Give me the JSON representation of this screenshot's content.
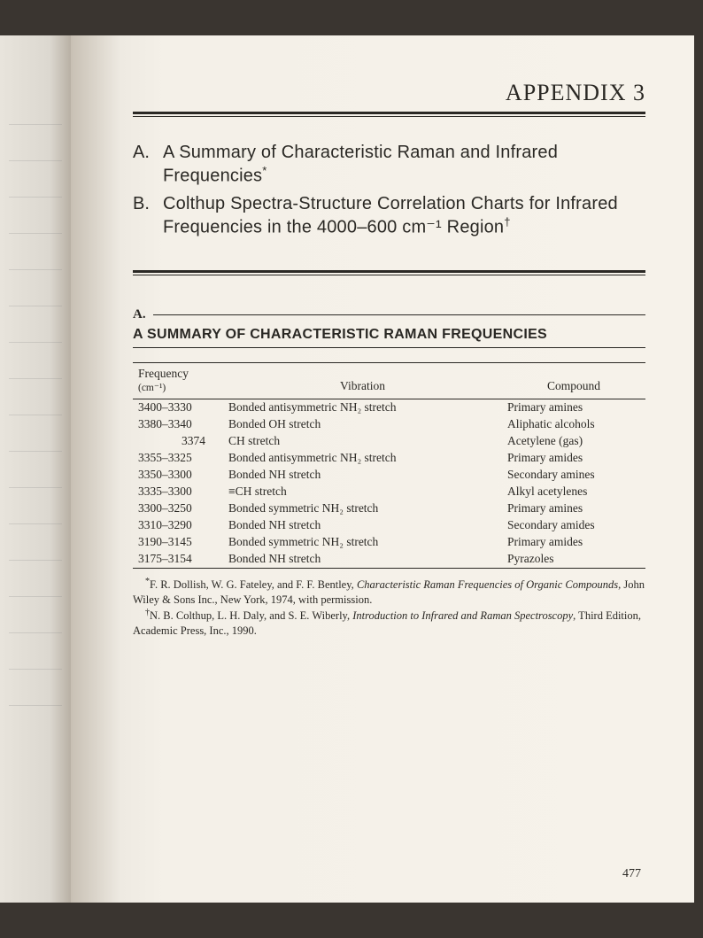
{
  "appendix_label": "APPENDIX 3",
  "toc": [
    {
      "letter": "A.",
      "text": "A Summary of Characteristic Raman and Infrared Frequencies",
      "mark": "*"
    },
    {
      "letter": "B.",
      "text": "Colthup Spectra-Structure Correlation Charts for Infrared Frequencies in the 4000–600 cm⁻¹ Region",
      "mark": "†"
    }
  ],
  "section": {
    "marker": "A.",
    "title": "A SUMMARY OF CHARACTERISTIC RAMAN FREQUENCIES"
  },
  "table": {
    "columns": {
      "freq_label": "Frequency",
      "freq_unit": "(cm⁻¹)",
      "vibration": "Vibration",
      "compound": "Compound"
    },
    "rows": [
      {
        "freq": "3400–3330",
        "vib": "Bonded antisymmetric NH₂ stretch",
        "comp": "Primary amines"
      },
      {
        "freq": "3380–3340",
        "vib": "Bonded OH stretch",
        "comp": "Aliphatic alcohols"
      },
      {
        "freq": "3374",
        "vib": "CH stretch",
        "comp": "Acetylene (gas)",
        "align_right": true
      },
      {
        "freq": "3355–3325",
        "vib": "Bonded antisymmetric NH₂ stretch",
        "comp": "Primary amides"
      },
      {
        "freq": "3350–3300",
        "vib": "Bonded NH stretch",
        "comp": "Secondary amines"
      },
      {
        "freq": "3335–3300",
        "vib": "≡CH stretch",
        "comp": "Alkyl acetylenes"
      },
      {
        "freq": "3300–3250",
        "vib": "Bonded symmetric NH₂ stretch",
        "comp": "Primary amines"
      },
      {
        "freq": "3310–3290",
        "vib": "Bonded NH stretch",
        "comp": "Secondary amides"
      },
      {
        "freq": "3190–3145",
        "vib": "Bonded symmetric NH₂ stretch",
        "comp": "Primary amides"
      },
      {
        "freq": "3175–3154",
        "vib": "Bonded NH stretch",
        "comp": "Pyrazoles"
      }
    ]
  },
  "footnotes": {
    "a_mark": "*",
    "a_text_1": "F. R. Dollish, W. G. Fateley, and F. F. Bentley, ",
    "a_title": "Characteristic Raman Frequencies of Organic Compounds",
    "a_text_2": ", John Wiley & Sons Inc., New York, 1974, with permission.",
    "b_mark": "†",
    "b_text_1": "N. B. Colthup, L. H. Daly, and S. E. Wiberly, ",
    "b_title": "Introduction to Infrared and Raman Spectroscopy",
    "b_text_2": ", Third Edition, Academic Press, Inc., 1990."
  },
  "page_number": "477"
}
